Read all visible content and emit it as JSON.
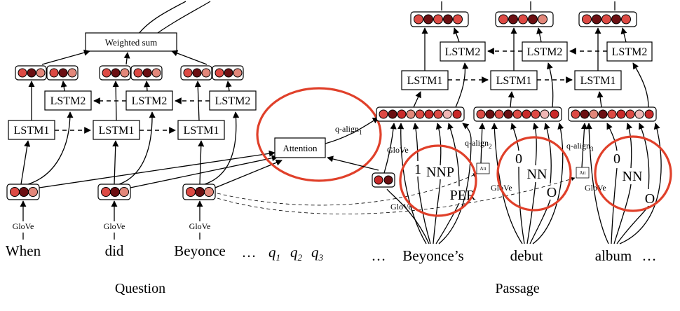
{
  "colors": {
    "dark": "#6b0f12",
    "red": "#c92a2a",
    "medium": "#dd4a44",
    "light": "#e2877a",
    "pale": "#f0b7b5",
    "highlight": "#e0402a"
  },
  "question": {
    "caption": "Question",
    "words": [
      "When",
      "did",
      "Beyonce"
    ],
    "ellipsis": "…",
    "q_tokens": [
      {
        "q": "q",
        "sub": "1"
      },
      {
        "q": "q",
        "sub": "2"
      },
      {
        "q": "q",
        "sub": "3"
      }
    ],
    "embedding_label": "GloVe",
    "lstm1_label": "LSTM1",
    "lstm2_label": "LSTM2",
    "weighted_sum_label": "Weighted sum"
  },
  "attention": {
    "label": "Attention",
    "q_align_label": "q-align",
    "q_align_sub": "1"
  },
  "passage": {
    "caption": "Passage",
    "lead_ellipsis": "…",
    "trail_ellipsis": "…",
    "words": [
      "Beyonce’s",
      "debut",
      "album"
    ],
    "embedding_label": "GloVe",
    "lstm1_label": "LSTM1",
    "lstm2_label": "LSTM2",
    "att_label": "Att",
    "features": [
      {
        "em": "1",
        "pos": "NNP",
        "ner": "PER"
      },
      {
        "em": "0",
        "pos": "NN",
        "ner": "O"
      },
      {
        "em": "0",
        "pos": "NN",
        "ner": "O"
      }
    ],
    "q_align_labels": [
      {
        "text": "q-align",
        "sub": "2"
      },
      {
        "text": "q-align",
        "sub": "3"
      }
    ]
  }
}
